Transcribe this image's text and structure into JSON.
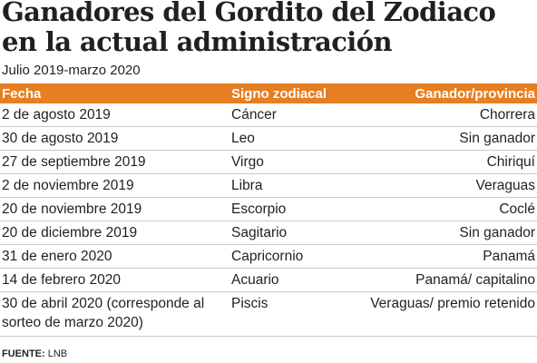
{
  "title": {
    "line1": "Ganadores del Gordito del Zodiaco",
    "line2": "en la actual administración"
  },
  "subtitle": "Julio 2019-marzo 2020",
  "table": {
    "headers": [
      "Fecha",
      "Signo zodiacal",
      "Ganador/provincia"
    ],
    "header_color": "#e67e22",
    "rows": [
      {
        "fecha": "2 de agosto 2019",
        "signo": "Cáncer",
        "ganador": "Chorrera"
      },
      {
        "fecha": "30 de agosto 2019",
        "signo": "Leo",
        "ganador": "Sin ganador"
      },
      {
        "fecha": "27 de septiembre 2019",
        "signo": "Virgo",
        "ganador": "Chiriquí"
      },
      {
        "fecha": "2 de noviembre 2019",
        "signo": "Libra",
        "ganador": "Veraguas"
      },
      {
        "fecha": "20 de noviembre 2019",
        "signo": "Escorpio",
        "ganador": "Coclé"
      },
      {
        "fecha": "20 de diciembre 2019",
        "signo": "Sagitario",
        "ganador": "Sin ganador"
      },
      {
        "fecha": "31 de enero 2020",
        "signo": "Capricornio",
        "ganador": "Panamá"
      },
      {
        "fecha": "14 de febrero 2020",
        "signo": "Acuario",
        "ganador": "Panamá/ capitalino"
      },
      {
        "fecha": "30 de abril 2020 (corresponde al sorteo de marzo 2020)",
        "signo": "Piscis",
        "ganador": "Veraguas/ premio retenido"
      }
    ]
  },
  "source": {
    "label": "FUENTE:",
    "value": "LNB"
  }
}
